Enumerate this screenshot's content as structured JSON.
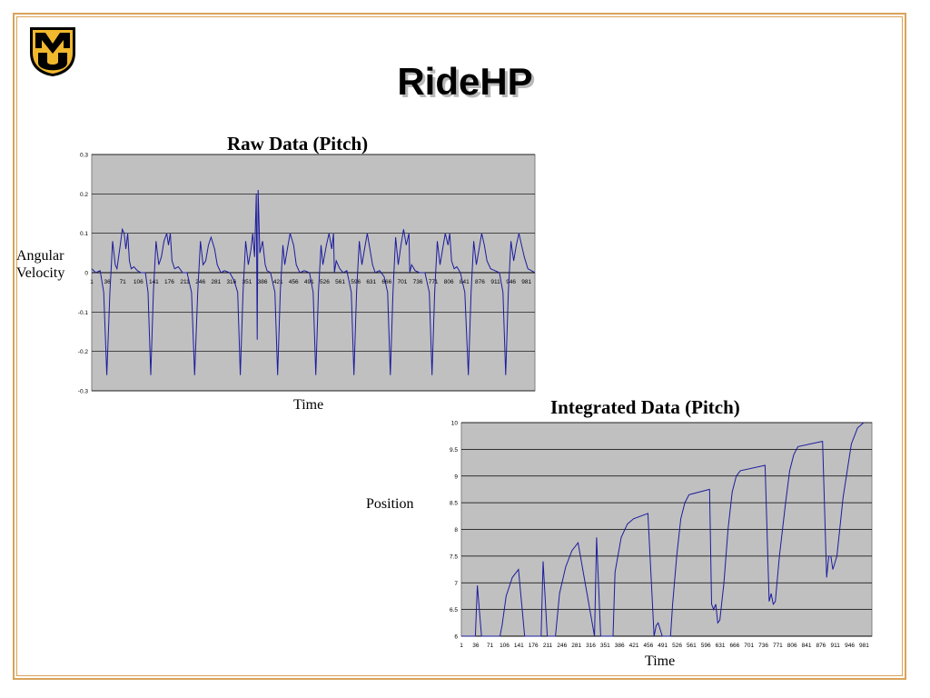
{
  "slide": {
    "title": "RideHP",
    "logo_text": "MU",
    "colors": {
      "frame": "#d9a35a",
      "logo_gold": "#f1b82d",
      "logo_black": "#000000",
      "plot_bg": "#c0c0c0",
      "series": "#1c1c9e"
    }
  },
  "chart_data": [
    {
      "type": "line",
      "title": "Raw Data (Pitch)",
      "xlabel": "Time",
      "ylabel": "Angular Velocity",
      "ylim": [
        -0.3,
        0.3
      ],
      "yticks": [
        "0.3",
        "0.2",
        "0.1",
        "0",
        "-0.1",
        "-0.2",
        "-0.3"
      ],
      "xticks": [
        "1",
        "36",
        "71",
        "106",
        "141",
        "176",
        "211",
        "246",
        "281",
        "316",
        "351",
        "386",
        "421",
        "456",
        "491",
        "526",
        "561",
        "596",
        "631",
        "666",
        "701",
        "736",
        "771",
        "806",
        "841",
        "876",
        "911",
        "946",
        "981"
      ],
      "grid": true,
      "series": [
        {
          "values": [
            [
              1,
              0.01
            ],
            [
              10,
              0.0
            ],
            [
              20,
              0.005
            ],
            [
              28,
              -0.05
            ],
            [
              35,
              -0.26
            ],
            [
              42,
              -0.05
            ],
            [
              48,
              0.08
            ],
            [
              54,
              0.02
            ],
            [
              58,
              0.01
            ],
            [
              64,
              0.06
            ],
            [
              70,
              0.11
            ],
            [
              74,
              0.1
            ],
            [
              78,
              0.06
            ],
            [
              82,
              0.1
            ],
            [
              86,
              0.03
            ],
            [
              90,
              0.01
            ],
            [
              96,
              0.015
            ],
            [
              104,
              0.005
            ],
            [
              112,
              0.0
            ],
            [
              122,
              0.0
            ],
            [
              128,
              -0.05
            ],
            [
              134,
              -0.26
            ],
            [
              140,
              -0.05
            ],
            [
              146,
              0.08
            ],
            [
              152,
              0.02
            ],
            [
              158,
              0.04
            ],
            [
              164,
              0.08
            ],
            [
              170,
              0.1
            ],
            [
              174,
              0.07
            ],
            [
              178,
              0.1
            ],
            [
              182,
              0.03
            ],
            [
              188,
              0.01
            ],
            [
              196,
              0.015
            ],
            [
              206,
              0.0
            ],
            [
              216,
              0.0
            ],
            [
              226,
              -0.05
            ],
            [
              233,
              -0.26
            ],
            [
              240,
              -0.05
            ],
            [
              246,
              0.08
            ],
            [
              252,
              0.02
            ],
            [
              258,
              0.03
            ],
            [
              264,
              0.07
            ],
            [
              270,
              0.09
            ],
            [
              278,
              0.06
            ],
            [
              284,
              0.02
            ],
            [
              292,
              0.0
            ],
            [
              300,
              0.005
            ],
            [
              312,
              0.0
            ],
            [
              322,
              -0.02
            ],
            [
              330,
              -0.05
            ],
            [
              336,
              -0.26
            ],
            [
              342,
              -0.05
            ],
            [
              348,
              0.08
            ],
            [
              354,
              0.02
            ],
            [
              360,
              0.06
            ],
            [
              364,
              0.1
            ],
            [
              368,
              0.04
            ],
            [
              372,
              0.2
            ],
            [
              374,
              -0.17
            ],
            [
              376,
              0.21
            ],
            [
              380,
              0.05
            ],
            [
              386,
              0.08
            ],
            [
              392,
              0.02
            ],
            [
              396,
              0.005
            ],
            [
              404,
              0.0
            ],
            [
              414,
              -0.05
            ],
            [
              420,
              -0.26
            ],
            [
              426,
              -0.05
            ],
            [
              432,
              0.07
            ],
            [
              436,
              0.02
            ],
            [
              442,
              0.06
            ],
            [
              448,
              0.1
            ],
            [
              456,
              0.07
            ],
            [
              462,
              0.02
            ],
            [
              470,
              0.0
            ],
            [
              480,
              0.005
            ],
            [
              492,
              0.0
            ],
            [
              500,
              -0.05
            ],
            [
              506,
              -0.26
            ],
            [
              512,
              -0.05
            ],
            [
              518,
              0.07
            ],
            [
              522,
              0.02
            ],
            [
              530,
              0.07
            ],
            [
              536,
              0.1
            ],
            [
              542,
              0.06
            ],
            [
              546,
              0.1
            ],
            [
              548,
              0.0
            ],
            [
              552,
              0.03
            ],
            [
              560,
              0.01
            ],
            [
              568,
              0.0
            ],
            [
              576,
              0.005
            ],
            [
              586,
              -0.05
            ],
            [
              592,
              -0.26
            ],
            [
              598,
              -0.05
            ],
            [
              604,
              0.08
            ],
            [
              610,
              0.02
            ],
            [
              616,
              0.06
            ],
            [
              622,
              0.1
            ],
            [
              628,
              0.06
            ],
            [
              634,
              0.02
            ],
            [
              640,
              0.0
            ],
            [
              650,
              0.005
            ],
            [
              660,
              -0.01
            ],
            [
              668,
              -0.05
            ],
            [
              674,
              -0.26
            ],
            [
              680,
              -0.05
            ],
            [
              686,
              0.09
            ],
            [
              692,
              0.02
            ],
            [
              698,
              0.07
            ],
            [
              704,
              0.11
            ],
            [
              710,
              0.07
            ],
            [
              716,
              0.1
            ],
            [
              718,
              0.0
            ],
            [
              722,
              0.02
            ],
            [
              730,
              0.005
            ],
            [
              740,
              0.0
            ],
            [
              752,
              0.0
            ],
            [
              762,
              -0.05
            ],
            [
              768,
              -0.26
            ],
            [
              774,
              -0.05
            ],
            [
              780,
              0.08
            ],
            [
              786,
              0.02
            ],
            [
              792,
              0.06
            ],
            [
              798,
              0.1
            ],
            [
              804,
              0.07
            ],
            [
              808,
              0.1
            ],
            [
              812,
              0.03
            ],
            [
              818,
              0.01
            ],
            [
              824,
              0.015
            ],
            [
              832,
              0.0
            ],
            [
              842,
              -0.05
            ],
            [
              850,
              -0.26
            ],
            [
              856,
              -0.05
            ],
            [
              862,
              0.08
            ],
            [
              868,
              0.02
            ],
            [
              874,
              0.06
            ],
            [
              880,
              0.1
            ],
            [
              886,
              0.07
            ],
            [
              892,
              0.03
            ],
            [
              900,
              0.01
            ],
            [
              910,
              0.005
            ],
            [
              920,
              0.0
            ],
            [
              928,
              -0.05
            ],
            [
              934,
              -0.26
            ],
            [
              940,
              -0.05
            ],
            [
              946,
              0.08
            ],
            [
              952,
              0.03
            ],
            [
              958,
              0.07
            ],
            [
              964,
              0.1
            ],
            [
              970,
              0.07
            ],
            [
              976,
              0.04
            ],
            [
              984,
              0.01
            ],
            [
              992,
              0.005
            ],
            [
              1000,
              0.0
            ]
          ]
        }
      ]
    },
    {
      "type": "line",
      "title": "Integrated Data (Pitch)",
      "xlabel": "Time",
      "ylabel": "Position",
      "ylim": [
        6,
        10
      ],
      "yticks": [
        "10",
        "9.5",
        "9",
        "8.5",
        "8",
        "7.5",
        "7",
        "6.5",
        "6"
      ],
      "xticks": [
        "1",
        "36",
        "71",
        "106",
        "141",
        "176",
        "211",
        "246",
        "281",
        "316",
        "351",
        "386",
        "421",
        "456",
        "491",
        "526",
        "561",
        "596",
        "631",
        "666",
        "701",
        "736",
        "771",
        "806",
        "841",
        "876",
        "911",
        "946",
        "981"
      ],
      "grid": true,
      "series": [
        {
          "values": [
            [
              1,
              6.0
            ],
            [
              35,
              6.0
            ],
            [
              40,
              6.95
            ],
            [
              50,
              6.0
            ],
            [
              95,
              6.0
            ],
            [
              100,
              6.2
            ],
            [
              110,
              6.75
            ],
            [
              125,
              7.1
            ],
            [
              140,
              7.25
            ],
            [
              155,
              6.0
            ],
            [
              195,
              6.0
            ],
            [
              200,
              7.4
            ],
            [
              210,
              6.0
            ],
            [
              230,
              6.0
            ],
            [
              240,
              6.8
            ],
            [
              255,
              7.3
            ],
            [
              270,
              7.6
            ],
            [
              285,
              7.75
            ],
            [
              325,
              6.0
            ],
            [
              330,
              7.85
            ],
            [
              340,
              6.0
            ],
            [
              370,
              6.0
            ],
            [
              375,
              7.2
            ],
            [
              390,
              7.85
            ],
            [
              405,
              8.1
            ],
            [
              420,
              8.2
            ],
            [
              455,
              8.3
            ],
            [
              470,
              6.0
            ],
            [
              475,
              6.2
            ],
            [
              480,
              6.25
            ],
            [
              490,
              6.0
            ],
            [
              510,
              6.0
            ],
            [
              515,
              6.6
            ],
            [
              525,
              7.5
            ],
            [
              535,
              8.2
            ],
            [
              545,
              8.5
            ],
            [
              555,
              8.65
            ],
            [
              605,
              8.75
            ],
            [
              610,
              6.6
            ],
            [
              615,
              6.5
            ],
            [
              620,
              6.6
            ],
            [
              625,
              6.25
            ],
            [
              630,
              6.3
            ],
            [
              640,
              7.0
            ],
            [
              650,
              8.0
            ],
            [
              660,
              8.7
            ],
            [
              670,
              9.0
            ],
            [
              680,
              9.1
            ],
            [
              740,
              9.2
            ],
            [
              750,
              6.65
            ],
            [
              755,
              6.8
            ],
            [
              760,
              6.6
            ],
            [
              765,
              6.65
            ],
            [
              775,
              7.5
            ],
            [
              790,
              8.5
            ],
            [
              800,
              9.1
            ],
            [
              810,
              9.4
            ],
            [
              820,
              9.55
            ],
            [
              880,
              9.65
            ],
            [
              890,
              7.1
            ],
            [
              895,
              7.5
            ],
            [
              900,
              7.5
            ],
            [
              905,
              7.25
            ],
            [
              915,
              7.5
            ],
            [
              930,
              8.6
            ],
            [
              950,
              9.6
            ],
            [
              965,
              9.9
            ],
            [
              980,
              10.0
            ]
          ]
        }
      ]
    }
  ]
}
